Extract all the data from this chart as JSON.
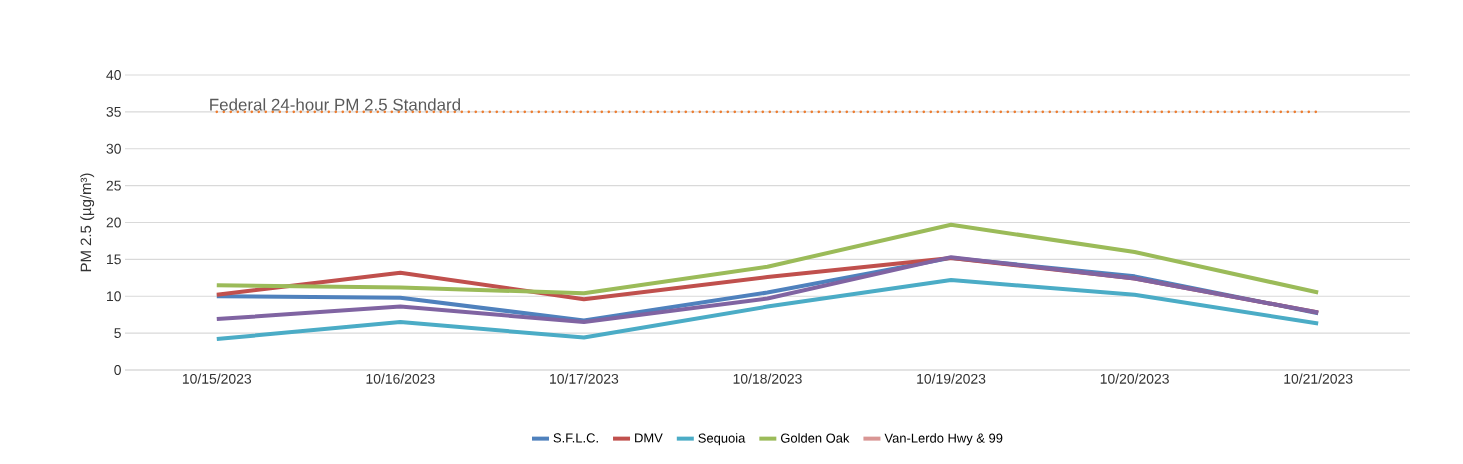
{
  "chart_data": {
    "type": "line",
    "ylabel": "PM 2.5 (µg/m³)",
    "categories": [
      "10/15/2023",
      "10/16/2023",
      "10/17/2023",
      "10/18/2023",
      "10/19/2023",
      "10/20/2023",
      "10/21/2023"
    ],
    "series": [
      {
        "name": "S.F.L.C.",
        "color": "#4f81bd",
        "values": [
          10,
          9.8,
          6.7,
          10.5,
          15.2,
          12.7,
          7.7
        ]
      },
      {
        "name": "DMV",
        "color": "#c0504d",
        "values": [
          10.2,
          13.2,
          9.6,
          12.6,
          15.2,
          12.4,
          7.8
        ]
      },
      {
        "color": "#8064a2",
        "values": [
          6.9,
          8.6,
          6.5,
          9.7,
          15.3,
          12.4,
          7.8
        ]
      },
      {
        "name": "Sequoia",
        "color": "#4bacc6",
        "values": [
          4.2,
          6.5,
          4.4,
          8.6,
          12.2,
          10.2,
          6.3
        ]
      },
      {
        "name": "Golden Oak",
        "color": "#9bbb59",
        "values": [
          11.5,
          11.2,
          10.4,
          14.0,
          19.7,
          16.0,
          10.5
        ]
      },
      {
        "name": "Van-Lerdo Hwy & 99",
        "color": "#d99694",
        "values": [
          null,
          null,
          null,
          null,
          null,
          null,
          null
        ]
      },
      {
        "color": "#ed7d31",
        "line_style": "dotted",
        "values": [
          35,
          35,
          35,
          35,
          35,
          35,
          35
        ]
      }
    ],
    "annotations": [
      "Federal 24-hour PM 2.5 Standard"
    ],
    "ylim": [
      0,
      40
    ],
    "yticks": [
      0,
      5,
      10,
      15,
      20,
      25,
      30,
      35,
      40
    ],
    "grid": "y",
    "legend": "bottom"
  }
}
